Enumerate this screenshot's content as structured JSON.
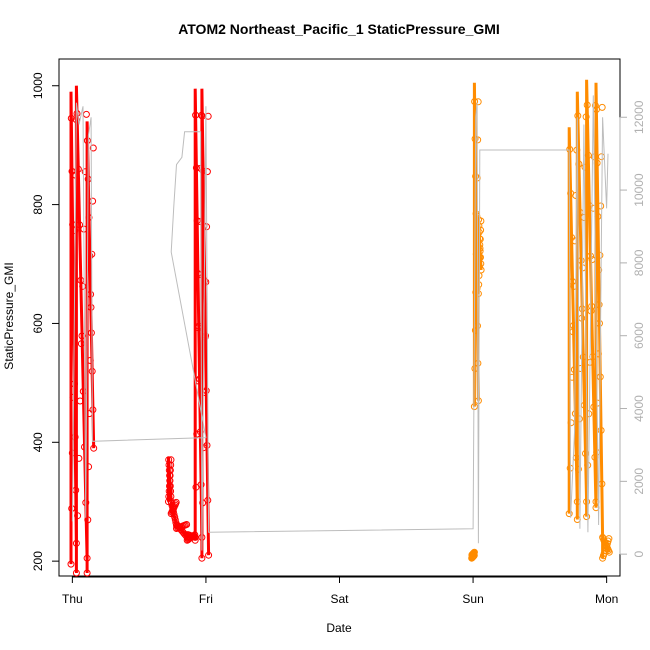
{
  "chart_data": {
    "type": "scatter",
    "title": "ATOM2 Northeast_Pacific_1 StaticPressure_GMI",
    "xlabel": "Date",
    "ylabel": "StaticPressure_GMI",
    "ylim": [
      175,
      1045
    ],
    "y2lim": [
      -600,
      13600
    ],
    "xlim": [
      -0.1,
      4.1
    ],
    "grid": false,
    "x_ticks": [
      {
        "pos": 0,
        "label": "Thu"
      },
      {
        "pos": 1,
        "label": "Fri"
      },
      {
        "pos": 2,
        "label": "Sat"
      },
      {
        "pos": 3,
        "label": "Sun"
      },
      {
        "pos": 4,
        "label": "Mon"
      }
    ],
    "y_ticks": [
      {
        "value": 200,
        "label": "200"
      },
      {
        "value": 400,
        "label": "400"
      },
      {
        "value": 600,
        "label": "600"
      },
      {
        "value": 800,
        "label": "800"
      },
      {
        "value": 1000,
        "label": "1000"
      }
    ],
    "y2_ticks": [
      {
        "value": 0,
        "label": "0"
      },
      {
        "value": 2000,
        "label": "2000"
      },
      {
        "value": 4000,
        "label": "4000"
      },
      {
        "value": 6000,
        "label": "6000"
      },
      {
        "value": 8000,
        "label": "8000"
      },
      {
        "value": 10000,
        "label": "10000"
      },
      {
        "value": 12000,
        "label": "12000"
      }
    ],
    "series": [
      {
        "color": "#ff0000",
        "kind": "points",
        "segments": [
          {
            "x0": -0.01,
            "x1": 0.03,
            "min": 195,
            "max": 990,
            "end": 230
          },
          {
            "x0": 0.03,
            "x1": 0.11,
            "min": 180,
            "max": 1000,
            "end": 205
          },
          {
            "x0": 0.11,
            "x1": 0.16,
            "min": 180,
            "max": 940,
            "end": 390
          },
          {
            "x0": 0.72,
            "x1": 0.74,
            "min": 300,
            "max": 375,
            "end": 300
          },
          {
            "x0": 0.74,
            "x1": 0.78,
            "min": 280,
            "max": 300,
            "end": 260
          },
          {
            "x0": 0.78,
            "x1": 0.86,
            "min": 255,
            "max": 262,
            "end": 240
          },
          {
            "x0": 0.86,
            "x1": 0.92,
            "min": 235,
            "max": 245,
            "end": 240
          },
          {
            "x0": 0.92,
            "x1": 0.97,
            "min": 235,
            "max": 995,
            "end": 240
          },
          {
            "x0": 0.97,
            "x1": 1.02,
            "min": 205,
            "max": 995,
            "end": 210
          }
        ]
      },
      {
        "color": "#ff8c00",
        "kind": "points",
        "segments": [
          {
            "x0": 2.99,
            "x1": 3.01,
            "min": 205,
            "max": 210,
            "end": 215
          },
          {
            "x0": 3.01,
            "x1": 3.04,
            "min": 460,
            "max": 1005,
            "end": 470
          },
          {
            "x0": 3.04,
            "x1": 3.06,
            "min": 650,
            "max": 780,
            "end": 690
          },
          {
            "x0": 3.72,
            "x1": 3.78,
            "min": 280,
            "max": 930,
            "end": 300
          },
          {
            "x0": 3.78,
            "x1": 3.85,
            "min": 270,
            "max": 990,
            "end": 300
          },
          {
            "x0": 3.85,
            "x1": 3.92,
            "min": 275,
            "max": 1010,
            "end": 290
          },
          {
            "x0": 3.92,
            "x1": 3.97,
            "min": 300,
            "max": 1005,
            "end": 240
          },
          {
            "x0": 3.97,
            "x1": 4.02,
            "min": 205,
            "max": 240,
            "end": 215
          }
        ]
      },
      {
        "color": "#bdbdbd",
        "kind": "line",
        "axis": "right",
        "points": [
          [
            0.0,
            900
          ],
          [
            0.03,
            12400
          ],
          [
            0.05,
            11800
          ],
          [
            0.08,
            12300
          ],
          [
            0.1,
            1000
          ],
          [
            0.12,
            11500
          ],
          [
            0.14,
            12000
          ],
          [
            0.15,
            3100
          ],
          [
            1.0,
            3200
          ],
          [
            0.74,
            8300
          ],
          [
            0.76,
            9600
          ],
          [
            0.78,
            10700
          ],
          [
            0.82,
            10900
          ],
          [
            0.84,
            11600
          ],
          [
            0.96,
            11600
          ],
          [
            0.97,
            100
          ],
          [
            1.0,
            12300
          ],
          [
            1.02,
            600
          ],
          [
            3.0,
            700
          ],
          [
            3.02,
            12000
          ],
          [
            3.03,
            12400
          ],
          [
            3.04,
            300
          ],
          [
            3.05,
            11100
          ],
          [
            3.72,
            11100
          ],
          [
            3.73,
            1000
          ],
          [
            3.76,
            3400
          ],
          [
            3.78,
            12000
          ],
          [
            3.8,
            700
          ],
          [
            3.83,
            11800
          ],
          [
            3.86,
            600
          ],
          [
            3.9,
            12600
          ],
          [
            3.94,
            800
          ],
          [
            3.97,
            12000
          ],
          [
            4.0,
            9500
          ],
          [
            4.01,
            11000
          ]
        ]
      }
    ]
  }
}
